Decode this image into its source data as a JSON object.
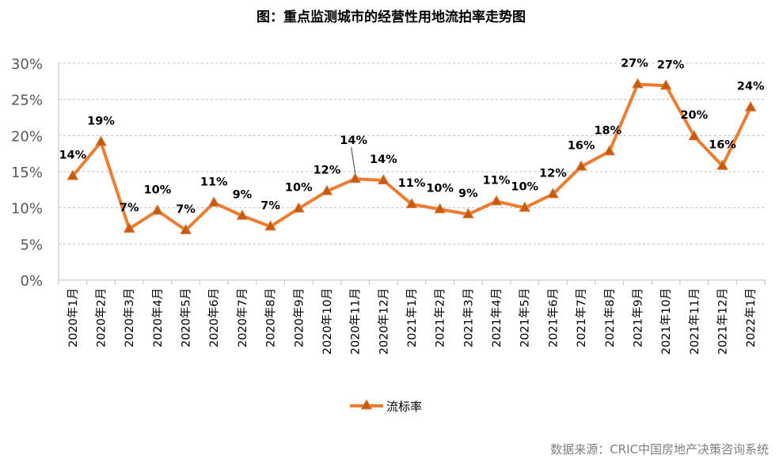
{
  "chart_data": {
    "type": "line",
    "title": "图：重点监测城市的经营性用地流拍率走势图",
    "categories": [
      "2020年1月",
      "2020年2月",
      "2020年3月",
      "2020年4月",
      "2020年5月",
      "2020年6月",
      "2020年7月",
      "2020年8月",
      "2020年9月",
      "2020年10月",
      "2020年11月",
      "2020年12月",
      "2021年1月",
      "2021年2月",
      "2021年3月",
      "2021年4月",
      "2021年5月",
      "2021年6月",
      "2021年7月",
      "2021年8月",
      "2021年9月",
      "2021年10月",
      "2021年11月",
      "2021年12月",
      "2022年1月"
    ],
    "series": [
      {
        "name": "流标率",
        "values": [
          14.4,
          19.1,
          7.1,
          9.6,
          6.9,
          10.7,
          8.9,
          7.4,
          9.9,
          12.3,
          14.0,
          13.8,
          10.5,
          9.8,
          9.1,
          10.9,
          10.0,
          11.9,
          15.7,
          17.8,
          27.1,
          26.9,
          19.9,
          15.8,
          23.9
        ],
        "labels": [
          "14%",
          "19%",
          "7%",
          "10%",
          "7%",
          "11%",
          "9%",
          "7%",
          "10%",
          "12%",
          "14%",
          "14%",
          "11%",
          "10%",
          "9%",
          "11%",
          "10%",
          "12%",
          "16%",
          "18%",
          "27%",
          "27%",
          "20%",
          "16%",
          "24%"
        ],
        "color": "#ED7D31",
        "marker_color": "#C55A11"
      }
    ],
    "ylim": [
      0,
      30
    ],
    "yticks": [
      "0%",
      "5%",
      "10%",
      "15%",
      "20%",
      "25%",
      "30%"
    ],
    "xlabel": "",
    "ylabel": "",
    "grid": true,
    "legend_position": "bottom-center",
    "source": "数据来源：CRIC中国房地产决策咨询系统"
  }
}
